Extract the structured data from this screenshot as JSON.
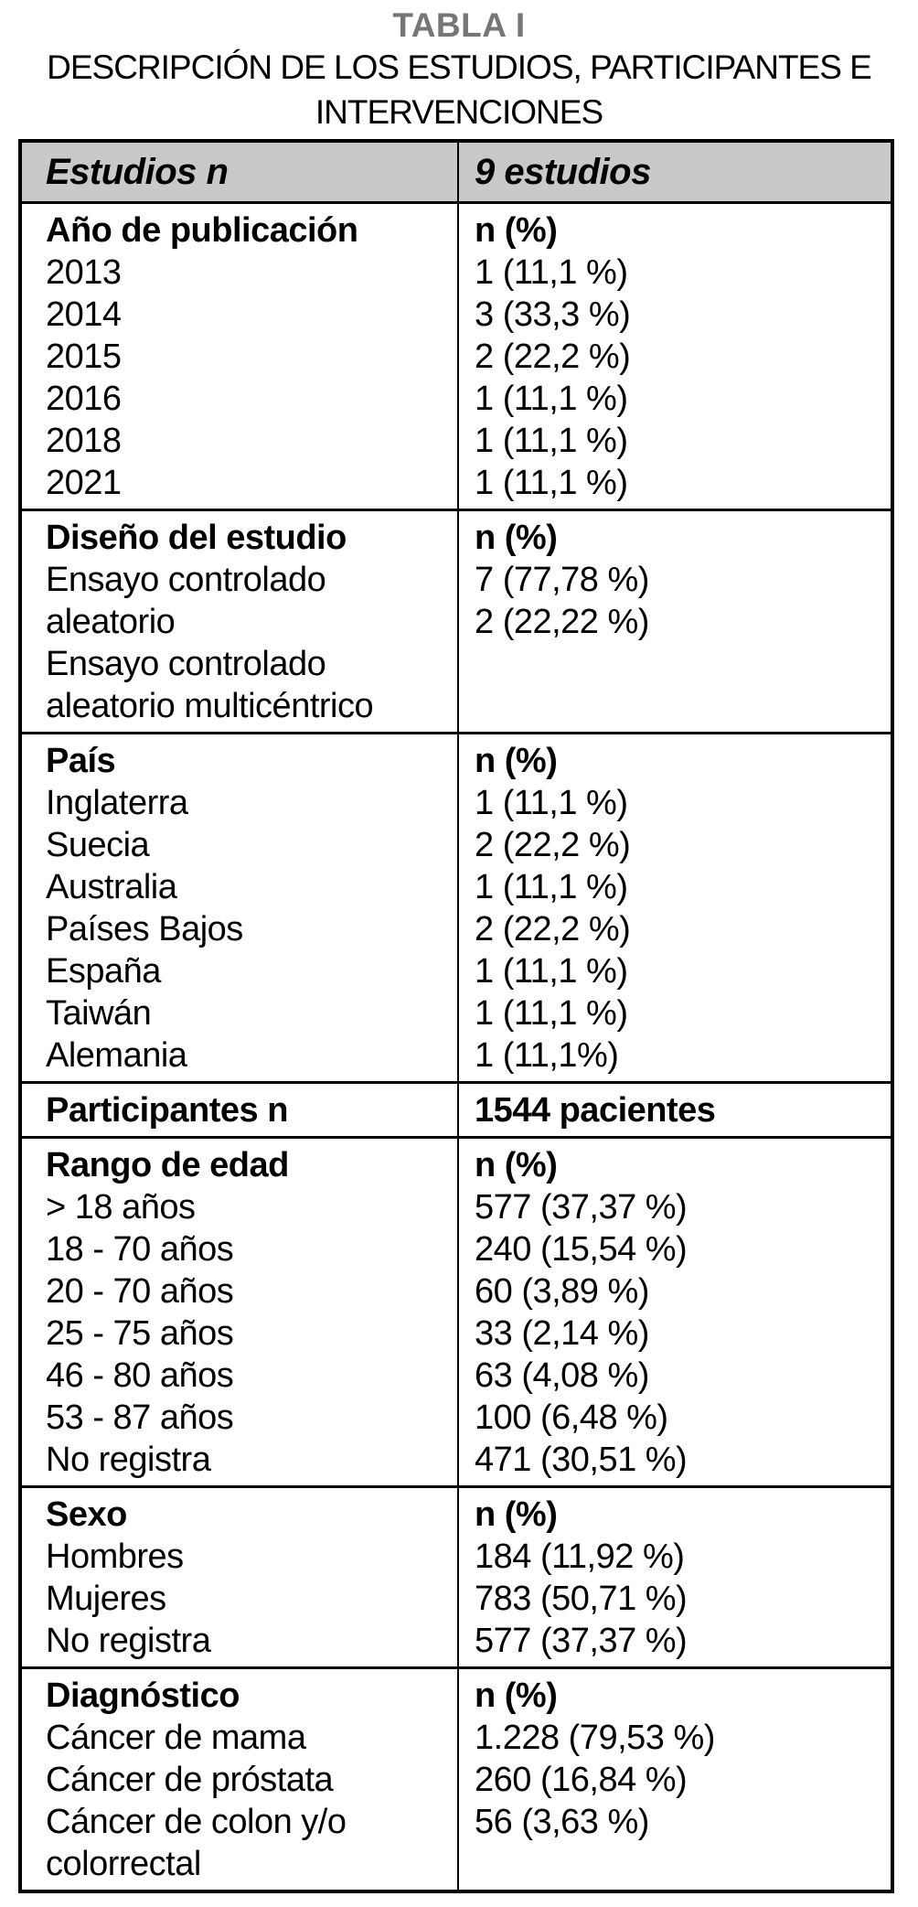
{
  "title": {
    "tabla": "TABLA I",
    "line1": "DESCRIPCIÓN DE LOS ESTUDIOS, PARTICIPANTES E",
    "line2": "INTERVENCIONES"
  },
  "colors": {
    "header_bg": "#c9c9c9",
    "border": "#000000",
    "title_gray": "#767676",
    "text": "#000000"
  },
  "table": {
    "header": {
      "left": "Estudios n",
      "right": "9 estudios"
    },
    "sections": [
      {
        "id": "anio-publicacion",
        "left": [
          "Año de publicación",
          "2013",
          "2014",
          "2015",
          "2016",
          "2018",
          "2021"
        ],
        "right": [
          "n (%)",
          "1 (11,1 %)",
          "3 (33,3 %)",
          "2 (22,2 %)",
          "1 (11,1 %)",
          "1 (11,1 %)",
          "1 (11,1 %)"
        ]
      },
      {
        "id": "diseno-estudio",
        "left": [
          "Diseño del estudio",
          "Ensayo controlado",
          "aleatorio",
          "Ensayo controlado",
          "aleatorio multicéntrico"
        ],
        "right": [
          "n (%)",
          "7 (77,78 %)",
          "2 (22,22 %)"
        ]
      },
      {
        "id": "pais",
        "left": [
          "País",
          "Inglaterra",
          "Suecia",
          "Australia",
          "Países Bajos",
          "España",
          "Taiwán",
          "Alemania"
        ],
        "right": [
          "n (%)",
          "1 (11,1 %)",
          "2 (22,2 %)",
          "1 (11,1 %)",
          "2 (22,2 %)",
          "1 (11,1 %)",
          "1 (11,1 %)",
          "1 (11,1%)"
        ]
      },
      {
        "id": "participantes",
        "left": [
          "Participantes n"
        ],
        "right": [
          "1544 pacientes"
        ]
      },
      {
        "id": "rango-edad",
        "left": [
          "Rango de edad",
          "> 18 años",
          "18 - 70 años",
          "20 - 70 años",
          "25 - 75 años",
          "46 - 80 años",
          "53 - 87 años",
          "No registra"
        ],
        "right": [
          "n (%)",
          "577 (37,37 %)",
          "240 (15,54 %)",
          "60 (3,89 %)",
          "33 (2,14 %)",
          "63 (4,08 %)",
          "100 (6,48 %)",
          "471 (30,51 %)"
        ]
      },
      {
        "id": "sexo",
        "left": [
          "Sexo",
          "Hombres",
          "Mujeres",
          "No registra"
        ],
        "right": [
          "n (%)",
          "184 (11,92 %)",
          "783 (50,71 %)",
          "577 (37,37 %)"
        ]
      },
      {
        "id": "diagnostico",
        "left": [
          "Diagnóstico",
          "Cáncer de mama",
          "Cáncer de próstata",
          "Cáncer de colon y/o",
          "colorrectal"
        ],
        "right": [
          "n (%)",
          "1.228 (79,53 %)",
          "260 (16,84 %)",
          "56 (3,63 %)"
        ]
      }
    ]
  }
}
